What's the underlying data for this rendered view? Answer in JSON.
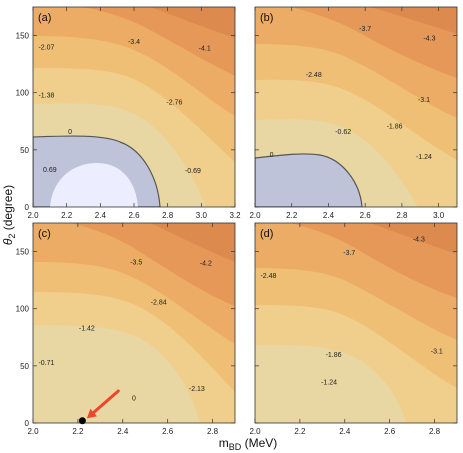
{
  "figure": {
    "xlabel_main": "m",
    "xlabel_sub": "BD",
    "xlabel_unit": " (MeV)",
    "ylabel_symbol": "θ",
    "ylabel_sub": "2",
    "ylabel_unit": " (degree)"
  },
  "colors": {
    "level_0": "#eceeff",
    "level_1": "#bfc3d9",
    "level_2": "#e8d6a3",
    "level_3": "#efcf8b",
    "level_4": "#eebf75",
    "level_5": "#ecac66",
    "level_6": "#e69858",
    "level_7": "#dd8a4e",
    "contour_line": "#555555",
    "arrow": "#f0442c",
    "marker": "#000000"
  },
  "chart_data": [
    {
      "type": "contour",
      "panel_label": "(a)",
      "xlim": [
        2.0,
        3.2
      ],
      "ylim": [
        0,
        175
      ],
      "xticks": [
        2.0,
        2.2,
        2.4,
        2.6,
        2.8,
        3.0,
        3.2
      ],
      "xtick_labels": [
        "2.0",
        "2.2",
        "2.4",
        "2.6",
        "2.8",
        "3.0",
        "3.2"
      ],
      "yticks": [
        0,
        50,
        100,
        150
      ],
      "ytick_labels": [
        "0",
        "50",
        "100",
        "150"
      ],
      "contour_labels": [
        {
          "text": "-2.07",
          "x": 2.08,
          "y": 140
        },
        {
          "text": "-3.4",
          "x": 2.6,
          "y": 145
        },
        {
          "text": "-4.1",
          "x": 3.02,
          "y": 139
        },
        {
          "text": "-1.38",
          "x": 2.08,
          "y": 98
        },
        {
          "text": "-2.76",
          "x": 2.84,
          "y": 92
        },
        {
          "text": "0",
          "x": 2.22,
          "y": 66
        },
        {
          "text": "0.69",
          "x": 2.1,
          "y": 33
        },
        {
          "text": "-0.69",
          "x": 2.95,
          "y": 32
        }
      ]
    },
    {
      "type": "contour",
      "panel_label": "(b)",
      "xlim": [
        2.0,
        3.1
      ],
      "ylim": [
        0,
        175
      ],
      "xticks": [
        2.0,
        2.2,
        2.4,
        2.6,
        2.8,
        3.0
      ],
      "xtick_labels": [
        "2.0",
        "2.2",
        "2.4",
        "2.6",
        "2.8",
        "3.0"
      ],
      "yticks": [
        0,
        50,
        100,
        150
      ],
      "ytick_labels": [
        "",
        "",
        "",
        ""
      ],
      "contour_labels": [
        {
          "text": "-3.7",
          "x": 2.6,
          "y": 156
        },
        {
          "text": "-4.3",
          "x": 2.95,
          "y": 148
        },
        {
          "text": "-2.48",
          "x": 2.32,
          "y": 116
        },
        {
          "text": "-3.1",
          "x": 2.92,
          "y": 94
        },
        {
          "text": "-1.86",
          "x": 2.76,
          "y": 71
        },
        {
          "text": "-0.62",
          "x": 2.48,
          "y": 66
        },
        {
          "text": "0",
          "x": 2.09,
          "y": 46
        },
        {
          "text": "-1.24",
          "x": 2.92,
          "y": 44
        }
      ]
    },
    {
      "type": "contour",
      "panel_label": "(c)",
      "xlim": [
        2.0,
        2.9
      ],
      "ylim": [
        0,
        175
      ],
      "xticks": [
        2.0,
        2.2,
        2.4,
        2.6,
        2.8
      ],
      "xtick_labels": [
        "2.0",
        "2.2",
        "2.4",
        "2.6",
        "2.8"
      ],
      "yticks": [
        0,
        50,
        100,
        150
      ],
      "ytick_labels": [
        "0",
        "50",
        "100",
        "150"
      ],
      "contour_labels": [
        {
          "text": "-3.5",
          "x": 2.46,
          "y": 141
        },
        {
          "text": "-4.2",
          "x": 2.77,
          "y": 140
        },
        {
          "text": "-2.84",
          "x": 2.56,
          "y": 106
        },
        {
          "text": "-1.42",
          "x": 2.24,
          "y": 83
        },
        {
          "text": "-0.71",
          "x": 2.06,
          "y": 53
        },
        {
          "text": "-2.13",
          "x": 2.73,
          "y": 30
        },
        {
          "text": "0",
          "x": 2.45,
          "y": 22
        }
      ],
      "marker": {
        "x": 2.22,
        "y": 2
      },
      "arrow": {
        "from": {
          "x": 2.38,
          "y": 28
        },
        "to": {
          "x": 2.24,
          "y": 4
        }
      }
    },
    {
      "type": "contour",
      "panel_label": "(d)",
      "xlim": [
        2.0,
        2.9
      ],
      "ylim": [
        0,
        175
      ],
      "xticks": [
        2.0,
        2.2,
        2.4,
        2.6,
        2.8
      ],
      "xtick_labels": [
        "2.0",
        "2.2",
        "2.4",
        "2.6",
        "2.8"
      ],
      "yticks": [
        0,
        50,
        100,
        150
      ],
      "ytick_labels": [
        "",
        "",
        "",
        ""
      ],
      "contour_labels": [
        {
          "text": "-3.7",
          "x": 2.42,
          "y": 149
        },
        {
          "text": "-4.3",
          "x": 2.73,
          "y": 161
        },
        {
          "text": "-2.48",
          "x": 2.06,
          "y": 129
        },
        {
          "text": "-3.1",
          "x": 2.81,
          "y": 63
        },
        {
          "text": "-1.86",
          "x": 2.35,
          "y": 60
        },
        {
          "text": "-1.24",
          "x": 2.33,
          "y": 36
        }
      ]
    }
  ]
}
